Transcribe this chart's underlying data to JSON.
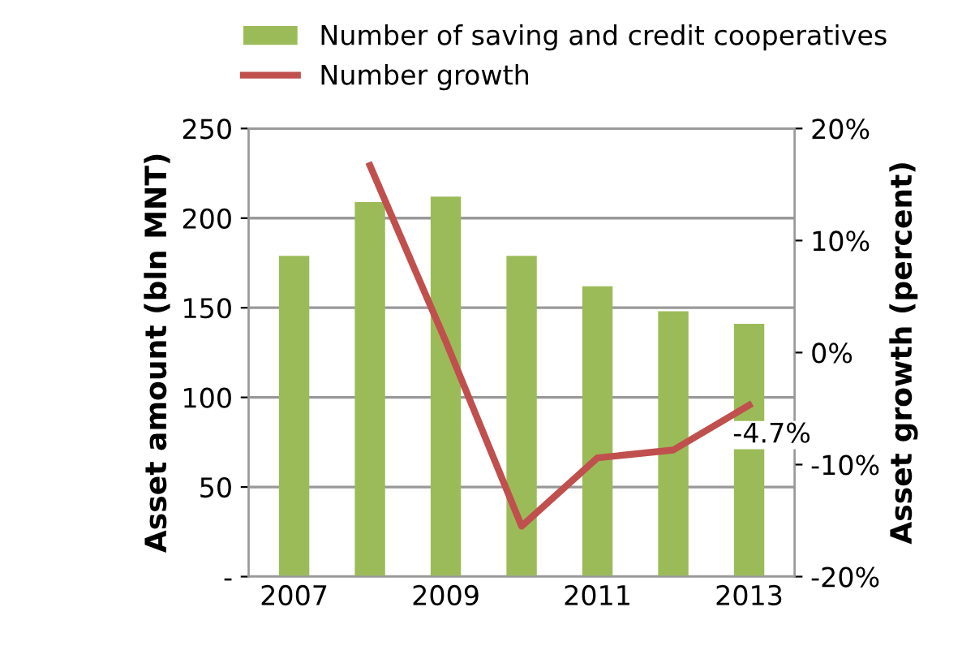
{
  "chart_data": {
    "type": "bar",
    "ylabel": "Asset amount (bln MNT)",
    "y2label": "Asset growth (percent)",
    "categories": [
      "2007",
      null,
      "2009",
      null,
      "2011",
      null,
      "2013"
    ],
    "series": [
      {
        "name": "Number of saving and credit cooperatives",
        "color": "#9bbb59",
        "values": [
          179,
          209,
          212,
          179,
          162,
          148,
          141
        ]
      },
      {
        "name": "Number growth",
        "type": "line",
        "axis": "y2",
        "color": "#c0504d",
        "values": [
          null,
          16.7,
          1,
          -15.5,
          -9.4,
          -8.7,
          -4.7
        ],
        "value_labels": [
          null,
          null,
          null,
          null,
          null,
          null,
          "-4.7%"
        ]
      }
    ],
    "ylim": [
      0,
      250
    ],
    "yticks": [
      {
        "value": 0,
        "label": "-"
      },
      50,
      100,
      150,
      200,
      250
    ],
    "y2lim": [
      -20,
      20
    ],
    "y2ticks": [
      {
        "value": -20,
        "label": "-20%"
      },
      {
        "value": -10,
        "label": "-10%"
      },
      {
        "value": 0,
        "label": "0%"
      },
      {
        "value": 10,
        "label": "10%"
      },
      {
        "value": 20,
        "label": "20%"
      }
    ],
    "grid": "y",
    "legend": "top"
  }
}
